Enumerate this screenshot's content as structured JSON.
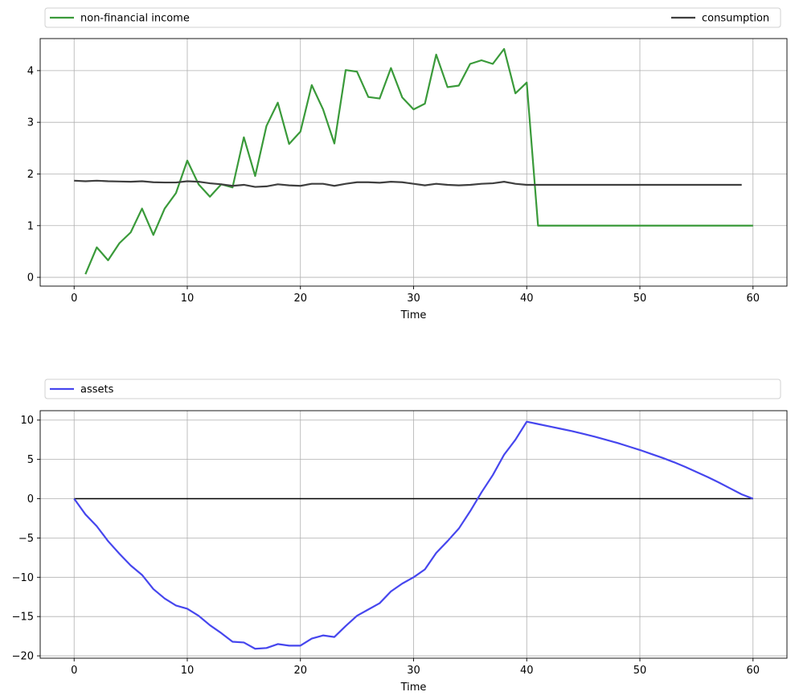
{
  "chart_data": [
    {
      "type": "line",
      "title": "",
      "xlabel": "Time",
      "ylabel": "",
      "xlim": [
        -3,
        63
      ],
      "ylim": [
        -0.17,
        4.62
      ],
      "xticks": [
        0,
        10,
        20,
        30,
        40,
        50,
        60
      ],
      "yticks": [
        0,
        1,
        2,
        3,
        4
      ],
      "grid": true,
      "legend": "above-plot, expanded",
      "series": [
        {
          "name": "non-financial income",
          "color": "#3a9a3a",
          "x": [
            1,
            2,
            3,
            4,
            5,
            6,
            7,
            8,
            9,
            10,
            11,
            12,
            13,
            14,
            15,
            16,
            17,
            18,
            19,
            20,
            21,
            22,
            23,
            24,
            25,
            26,
            27,
            28,
            29,
            30,
            31,
            32,
            33,
            34,
            35,
            36,
            37,
            38,
            39,
            40,
            41,
            42,
            43,
            44,
            45,
            46,
            47,
            48,
            49,
            50,
            51,
            52,
            53,
            54,
            55,
            56,
            57,
            58,
            59,
            60
          ],
          "y": [
            0.06,
            0.58,
            0.33,
            0.66,
            0.87,
            1.33,
            0.82,
            1.33,
            1.63,
            2.26,
            1.8,
            1.56,
            1.8,
            1.74,
            2.71,
            1.96,
            2.93,
            3.38,
            2.58,
            2.82,
            3.72,
            3.25,
            2.59,
            4.01,
            3.98,
            3.49,
            3.46,
            4.05,
            3.48,
            3.25,
            3.36,
            4.31,
            3.68,
            3.71,
            4.13,
            4.2,
            4.13,
            4.42,
            3.56,
            3.77,
            1.0,
            1.0,
            1.0,
            1.0,
            1.0,
            1.0,
            1.0,
            1.0,
            1.0,
            1.0,
            1.0,
            1.0,
            1.0,
            1.0,
            1.0,
            1.0,
            1.0,
            1.0,
            1.0,
            1.0
          ]
        },
        {
          "name": "consumption",
          "color": "#3f3f3f",
          "x": [
            0,
            1,
            2,
            3,
            4,
            5,
            6,
            7,
            8,
            9,
            10,
            11,
            12,
            13,
            14,
            15,
            16,
            17,
            18,
            19,
            20,
            21,
            22,
            23,
            24,
            25,
            26,
            27,
            28,
            29,
            30,
            31,
            32,
            33,
            34,
            35,
            36,
            37,
            38,
            39,
            40,
            41,
            42,
            43,
            44,
            45,
            46,
            47,
            48,
            49,
            50,
            51,
            52,
            53,
            54,
            55,
            56,
            57,
            58,
            59
          ],
          "y": [
            1.87,
            1.86,
            1.87,
            1.86,
            1.855,
            1.85,
            1.86,
            1.84,
            1.835,
            1.835,
            1.86,
            1.85,
            1.82,
            1.8,
            1.77,
            1.79,
            1.75,
            1.76,
            1.8,
            1.78,
            1.77,
            1.81,
            1.81,
            1.77,
            1.81,
            1.84,
            1.84,
            1.83,
            1.85,
            1.84,
            1.81,
            1.78,
            1.81,
            1.79,
            1.78,
            1.79,
            1.81,
            1.82,
            1.85,
            1.81,
            1.79,
            1.79,
            1.79,
            1.79,
            1.79,
            1.79,
            1.79,
            1.79,
            1.79,
            1.79,
            1.79,
            1.79,
            1.79,
            1.79,
            1.79,
            1.79,
            1.79,
            1.79,
            1.79,
            1.79
          ]
        }
      ]
    },
    {
      "type": "line",
      "title": "",
      "xlabel": "Time",
      "ylabel": "",
      "xlim": [
        -3,
        63
      ],
      "ylim": [
        -20.3,
        11.2
      ],
      "xticks": [
        0,
        10,
        20,
        30,
        40,
        50,
        60
      ],
      "yticks": [
        -20,
        -15,
        -10,
        -5,
        0,
        5,
        10
      ],
      "grid": true,
      "legend": "above-plot, expanded",
      "zero_line": true,
      "series": [
        {
          "name": "assets",
          "color": "#4646ee",
          "x": [
            0,
            1,
            2,
            3,
            4,
            5,
            6,
            7,
            8,
            9,
            10,
            11,
            12,
            13,
            14,
            15,
            16,
            17,
            18,
            19,
            20,
            21,
            22,
            23,
            24,
            25,
            26,
            27,
            28,
            29,
            30,
            31,
            32,
            33,
            34,
            35,
            36,
            37,
            38,
            39,
            40,
            41,
            42,
            43,
            44,
            45,
            46,
            47,
            48,
            49,
            50,
            51,
            52,
            53,
            54,
            55,
            56,
            57,
            58,
            59,
            60
          ],
          "y": [
            0,
            -2.0,
            -3.5,
            -5.4,
            -7.0,
            -8.5,
            -9.7,
            -11.5,
            -12.7,
            -13.6,
            -14.0,
            -14.9,
            -16.1,
            -17.1,
            -18.2,
            -18.3,
            -19.1,
            -19.0,
            -18.5,
            -18.7,
            -18.7,
            -17.8,
            -17.4,
            -17.6,
            -16.2,
            -14.9,
            -14.1,
            -13.3,
            -11.8,
            -10.8,
            -10.0,
            -9.0,
            -6.9,
            -5.4,
            -3.8,
            -1.6,
            0.8,
            3.0,
            5.6,
            7.5,
            9.8,
            9.5,
            9.2,
            8.9,
            8.6,
            8.25,
            7.9,
            7.5,
            7.1,
            6.65,
            6.2,
            5.7,
            5.2,
            4.65,
            4.05,
            3.4,
            2.75,
            2.05,
            1.3,
            0.55,
            0.0
          ]
        }
      ]
    }
  ]
}
